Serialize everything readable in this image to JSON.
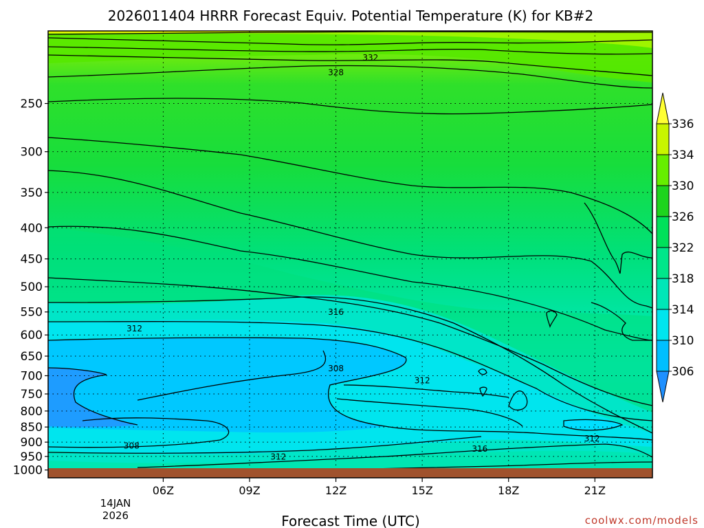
{
  "chart_data": {
    "type": "contour",
    "title": "2026011404 HRRR Forecast Equiv. Potential Temperature (K) for KB#2",
    "xlabel": "Forecast Time (UTC)",
    "ylabel": "",
    "x_range_hours": [
      2,
      23
    ],
    "y_range_hpa": [
      1030,
      190
    ],
    "y_scale": "log-pressure",
    "x_ticks": [
      {
        "value": 6,
        "label": "06Z"
      },
      {
        "value": 9,
        "label": "09Z"
      },
      {
        "value": 12,
        "label": "12Z"
      },
      {
        "value": 15,
        "label": "15Z"
      },
      {
        "value": 18,
        "label": "18Z"
      },
      {
        "value": 21,
        "label": "21Z"
      }
    ],
    "x_date_labels": [
      "14JAN",
      "2026"
    ],
    "y_ticks": [
      {
        "value": 250,
        "label": "250"
      },
      {
        "value": 300,
        "label": "300"
      },
      {
        "value": 350,
        "label": "350"
      },
      {
        "value": 400,
        "label": "400"
      },
      {
        "value": 450,
        "label": "450"
      },
      {
        "value": 500,
        "label": "500"
      },
      {
        "value": 550,
        "label": "550"
      },
      {
        "value": 600,
        "label": "600"
      },
      {
        "value": 650,
        "label": "650"
      },
      {
        "value": 700,
        "label": "700"
      },
      {
        "value": 750,
        "label": "750"
      },
      {
        "value": 800,
        "label": "800"
      },
      {
        "value": 850,
        "label": "850"
      },
      {
        "value": 900,
        "label": "900"
      },
      {
        "value": 950,
        "label": "950"
      },
      {
        "value": 1000,
        "label": "1000"
      }
    ],
    "grid": "dotted",
    "colorbar": {
      "levels": [
        306,
        310,
        314,
        318,
        322,
        326,
        330,
        334,
        336
      ],
      "labels": [
        "336",
        "334",
        "330",
        "326",
        "322",
        "318",
        "314",
        "310",
        "306"
      ],
      "colors": [
        "#1e90ff",
        "#00bfff",
        "#00e5ee",
        "#00e6b8",
        "#00e68a",
        "#00e05a",
        "#1ed41e",
        "#66ee00",
        "#c8f500",
        "#ffff33"
      ]
    },
    "contour_labels": [
      {
        "text": "332",
        "hour": 13.2,
        "hpa": 210
      },
      {
        "text": "328",
        "hour": 12.0,
        "hpa": 222
      },
      {
        "text": "316",
        "hour": 12.0,
        "hpa": 550
      },
      {
        "text": "312",
        "hour": 5.0,
        "hpa": 585
      },
      {
        "text": "308",
        "hour": 12.0,
        "hpa": 680
      },
      {
        "text": "312",
        "hour": 15.0,
        "hpa": 712
      },
      {
        "text": "308",
        "hour": 4.9,
        "hpa": 912
      },
      {
        "text": "312",
        "hour": 10.0,
        "hpa": 950
      },
      {
        "text": "316",
        "hour": 17.0,
        "hpa": 922
      },
      {
        "text": "312",
        "hour": 20.9,
        "hpa": 887
      }
    ],
    "ground": {
      "below_hpa": 1010,
      "color": "#a0522d"
    }
  },
  "credit": "coolwx.com/models"
}
